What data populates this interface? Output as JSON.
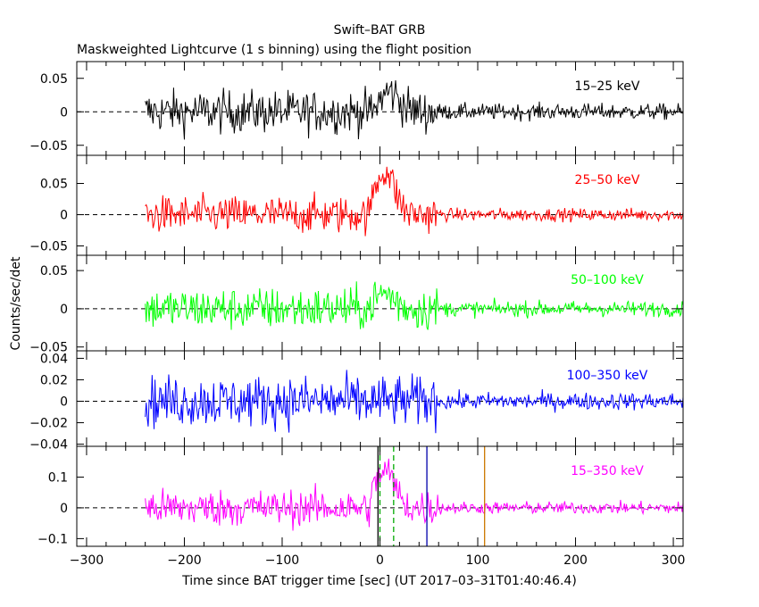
{
  "header": {
    "title": "Swift–BAT GRB",
    "subtitle": "Maskweighted Lightcurve (1 s binning) using the flight position"
  },
  "axes": {
    "xlabel": "Time since BAT trigger time [sec] (UT 2017–03–31T01:40:46.4)",
    "ylabel": "Counts/sec/det"
  },
  "chart_data": [
    {
      "type": "line",
      "label": "15–25 keV",
      "color": "#000000",
      "xlim": [
        -310,
        310
      ],
      "ylim": [
        -0.065,
        0.075
      ],
      "yticks": [
        {
          "value": 0.05,
          "label": "0.05"
        },
        {
          "value": 0,
          "label": "0"
        },
        {
          "value": -0.05,
          "label": "−0.05"
        }
      ],
      "x_range": [
        -240,
        310
      ],
      "noise_pre": 0.016,
      "noise_post": 0.006,
      "peak": 0.03,
      "peak_time": 10
    },
    {
      "type": "line",
      "label": "25–50 keV",
      "color": "#ff0000",
      "xlim": [
        -310,
        310
      ],
      "ylim": [
        -0.065,
        0.095
      ],
      "yticks": [
        {
          "value": 0.05,
          "label": "0.05"
        },
        {
          "value": 0,
          "label": "0"
        },
        {
          "value": -0.05,
          "label": "−0.05"
        }
      ],
      "x_range": [
        -240,
        310
      ],
      "noise_pre": 0.015,
      "noise_post": 0.005,
      "peak": 0.07,
      "peak_time": 5
    },
    {
      "type": "line",
      "label": "50–100 keV",
      "color": "#00ff00",
      "xlim": [
        -310,
        310
      ],
      "ylim": [
        -0.055,
        0.07
      ],
      "yticks": [
        {
          "value": 0.05,
          "label": "0.05"
        },
        {
          "value": 0,
          "label": "0"
        },
        {
          "value": -0.05,
          "label": "−0.05"
        }
      ],
      "x_range": [
        -240,
        310
      ],
      "noise_pre": 0.014,
      "noise_post": 0.005,
      "peak": 0.02,
      "peak_time": 5
    },
    {
      "type": "line",
      "label": "100–350 keV",
      "color": "#0000ff",
      "xlim": [
        -310,
        310
      ],
      "ylim": [
        -0.042,
        0.047
      ],
      "yticks": [
        {
          "value": 0.04,
          "label": "0.04"
        },
        {
          "value": 0.02,
          "label": "0.02"
        },
        {
          "value": 0,
          "label": "0"
        },
        {
          "value": -0.02,
          "label": "−0.02"
        },
        {
          "value": -0.04,
          "label": "−0.04"
        }
      ],
      "x_range": [
        -240,
        310
      ],
      "noise_pre": 0.012,
      "noise_post": 0.004,
      "peak": 0.0,
      "peak_time": 5
    },
    {
      "type": "line",
      "label": "15–350 keV",
      "color": "#ff00ff",
      "xlim": [
        -310,
        310
      ],
      "ylim": [
        -0.125,
        0.2
      ],
      "yticks": [
        {
          "value": 0.1,
          "label": "0.1"
        },
        {
          "value": 0,
          "label": "0"
        },
        {
          "value": -0.1,
          "label": "−0.1"
        }
      ],
      "x_range": [
        -240,
        310
      ],
      "noise_pre": 0.03,
      "noise_post": 0.01,
      "peak": 0.12,
      "peak_time": 5,
      "markers": [
        {
          "x": -2,
          "color": "#000000",
          "style": "solid"
        },
        {
          "x": 0,
          "color": "#00aa00",
          "style": "dashed"
        },
        {
          "x": 14,
          "color": "#00aa00",
          "style": "dashed"
        },
        {
          "x": 48,
          "color": "#0000aa",
          "style": "solid"
        },
        {
          "x": 107,
          "color": "#cc7700",
          "style": "solid"
        }
      ]
    }
  ],
  "xticks": [
    {
      "value": -300,
      "label": "−300"
    },
    {
      "value": -200,
      "label": "−200"
    },
    {
      "value": -100,
      "label": "−100"
    },
    {
      "value": 0,
      "label": "0"
    },
    {
      "value": 100,
      "label": "100"
    },
    {
      "value": 200,
      "label": "200"
    },
    {
      "value": 300,
      "label": "300"
    }
  ]
}
